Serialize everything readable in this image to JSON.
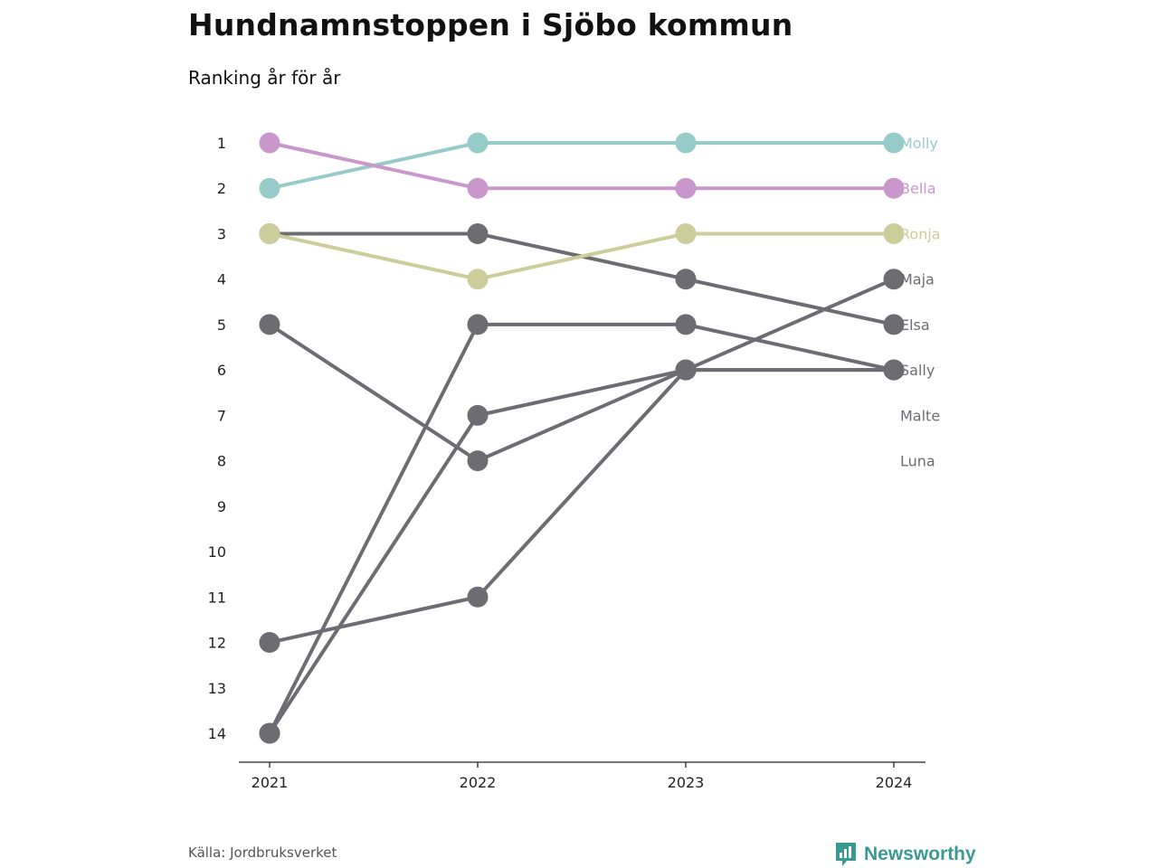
{
  "title": "Hundnamnstoppen i Sjöbo kommun",
  "subtitle": "Ranking år för år",
  "source": "Källa: Jordbruksverket",
  "brand": {
    "name": "Newsworthy",
    "icon": "bar-chart-speech-icon",
    "color": "#3a9a93"
  },
  "chart_data": {
    "type": "line",
    "chart_kind": "bump",
    "x": [
      "2021",
      "2022",
      "2023",
      "2024"
    ],
    "y_ticks": [
      1,
      2,
      3,
      4,
      5,
      6,
      7,
      8,
      9,
      10,
      11,
      12,
      13,
      14
    ],
    "y_reversed": true,
    "ylim": [
      1,
      14
    ],
    "grid": false,
    "legend": "none (direct labels at right end)",
    "series": [
      {
        "name": "Molly",
        "values": [
          2,
          1,
          1,
          1
        ],
        "color": "#96cbc9"
      },
      {
        "name": "Bella",
        "values": [
          1,
          2,
          2,
          2
        ],
        "color": "#c997cc"
      },
      {
        "name": "Ronja",
        "values": [
          3,
          4,
          3,
          3
        ],
        "color": "#cccd9a"
      },
      {
        "name": "Maja",
        "values": [
          14,
          7,
          6,
          4
        ],
        "color": "#6d6c72"
      },
      {
        "name": "Elsa",
        "values": [
          3,
          3,
          4,
          5
        ],
        "color": "#6d6c72"
      },
      {
        "name": "Sally",
        "values": [
          14,
          5,
          5,
          6
        ],
        "color": "#6d6c72"
      },
      {
        "name": "Malte",
        "values": [
          5,
          8,
          6,
          6
        ],
        "color": "#6d6c72"
      },
      {
        "name": "Luna",
        "values": [
          12,
          11,
          6,
          6
        ],
        "color": "#6d6c72"
      }
    ],
    "end_labels": [
      {
        "name": "Molly",
        "rank": 1,
        "color": "#96cbc9"
      },
      {
        "name": "Bella",
        "rank": 2,
        "color": "#c997cc"
      },
      {
        "name": "Ronja",
        "rank": 3,
        "color": "#cccd9a"
      },
      {
        "name": "Maja",
        "rank": 4,
        "color": "#6d6c72"
      },
      {
        "name": "Elsa",
        "rank": 5,
        "color": "#6d6c72"
      },
      {
        "name": "Sally",
        "rank": 6,
        "color": "#6d6c72"
      },
      {
        "name": "Malte",
        "rank": 7,
        "color": "#6d6c72"
      },
      {
        "name": "Luna",
        "rank": 8,
        "color": "#6d6c72"
      }
    ]
  }
}
